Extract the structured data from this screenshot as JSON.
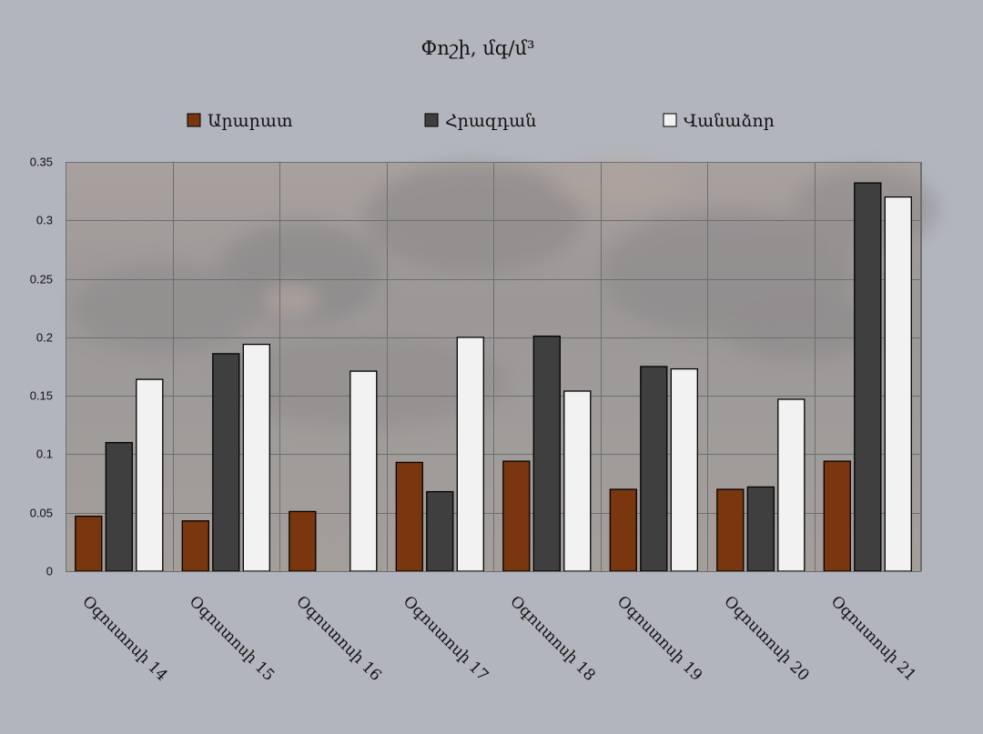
{
  "chart_data": {
    "type": "bar",
    "title": "Փոշի, մգ/մ³",
    "categories": [
      "Օգոստոսի 14",
      "Օգոստոսի 15",
      "Օգոստոսի 16",
      "Օգոստոսի 17",
      "Օգոստոսի 18",
      "Օգոստոսի 19",
      "Օգոստոսի 20",
      "Օգոստոսի 21"
    ],
    "series": [
      {
        "name": "Արարատ",
        "color": "#7a360e",
        "values": [
          0.047,
          0.043,
          0.051,
          0.093,
          0.094,
          0.07,
          0.07,
          0.094
        ]
      },
      {
        "name": "Հրազդան",
        "color": "#3f3f3f",
        "values": [
          0.11,
          0.186,
          null,
          0.068,
          0.201,
          0.175,
          0.072,
          0.332
        ]
      },
      {
        "name": "Վանաձոր",
        "color": "#f2f2f2",
        "values": [
          0.164,
          0.194,
          0.171,
          0.2,
          0.154,
          0.173,
          0.147,
          0.32
        ]
      }
    ],
    "ylim": [
      0,
      0.35
    ],
    "yticks": [
      "0",
      "0.05",
      "0.1",
      "0.15",
      "0.2",
      "0.25",
      "0.3",
      "0.35"
    ],
    "grid": true,
    "legend_position": "top"
  }
}
